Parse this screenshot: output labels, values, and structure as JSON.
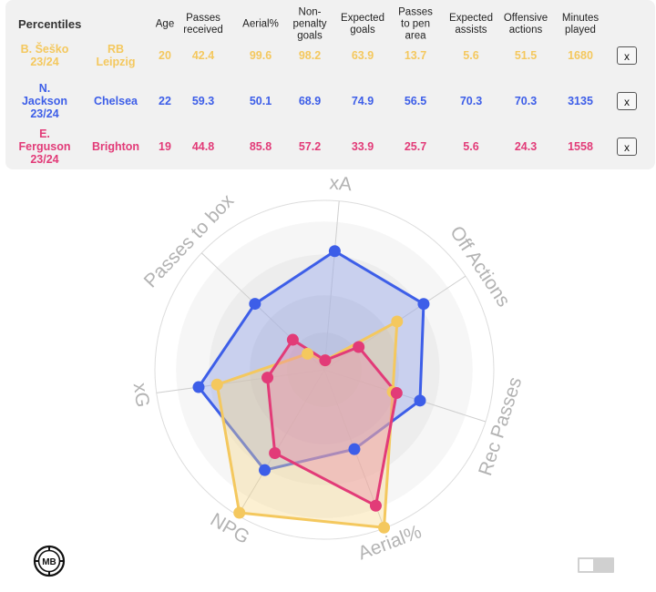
{
  "table": {
    "title": "Percentiles",
    "headers": [
      "Age",
      "Passes received",
      "Aerial%",
      "Non-penalty goals",
      "Expected goals",
      "Passes to pen area",
      "Expected assists",
      "Offensive actions",
      "Minutes played"
    ],
    "header_lines": [
      [
        "Age"
      ],
      [
        "Passes",
        "received"
      ],
      [
        "Aerial%"
      ],
      [
        "Non-",
        "penalty",
        "goals"
      ],
      [
        "Expected",
        "goals"
      ],
      [
        "Passes",
        "to pen",
        "area"
      ],
      [
        "Expected",
        "assists"
      ],
      [
        "Offensive",
        "actions"
      ],
      [
        "Minutes",
        "played"
      ]
    ],
    "remove_label": "x",
    "rows": [
      {
        "player_lines": [
          "B. Šeško",
          "23/24"
        ],
        "team_lines": [
          "RB",
          "Leipzig"
        ],
        "color": "#f4c85e",
        "values": [
          "20",
          "42.4",
          "99.6",
          "98.2",
          "63.9",
          "13.7",
          "5.6",
          "51.5",
          "1680"
        ]
      },
      {
        "player_lines": [
          "N.",
          "Jackson",
          "23/24"
        ],
        "team_lines": [
          "Chelsea"
        ],
        "color": "#3d5ee8",
        "values": [
          "22",
          "59.3",
          "50.1",
          "68.9",
          "74.9",
          "56.5",
          "70.3",
          "70.3",
          "3135"
        ]
      },
      {
        "player_lines": [
          "E.",
          "Ferguson",
          "23/24"
        ],
        "team_lines": [
          "Brighton"
        ],
        "color": "#e23b78",
        "values": [
          "19",
          "44.8",
          "85.8",
          "57.2",
          "33.9",
          "25.7",
          "5.6",
          "24.3",
          "1558"
        ]
      }
    ]
  },
  "radar": {
    "axes": [
      "xA",
      "Off Actions",
      "Rec Passes",
      "Aerial%",
      "NPG",
      "xG",
      "Passes to box"
    ],
    "axis_label_color": "#b3b3b3",
    "series": [
      {
        "player": "B. Šeško",
        "color": "#f4c85e",
        "fill": "#f7d88a",
        "values": [
          5.6,
          51.5,
          42.4,
          99.6,
          98.2,
          63.9,
          13.7
        ]
      },
      {
        "player": "N. Jackson",
        "color": "#3d5ee8",
        "fill": "#8ea0ef",
        "values": [
          70.3,
          70.3,
          59.3,
          50.1,
          68.9,
          74.9,
          56.5
        ]
      },
      {
        "player": "E. Ferguson",
        "color": "#e23b78",
        "fill": "#ec8aa8",
        "values": [
          5.6,
          24.3,
          44.8,
          85.8,
          57.2,
          33.9,
          25.7
        ]
      }
    ]
  },
  "footer": {
    "logo_text": "MB",
    "logo_icon": "mb-logo-icon",
    "toggle_state": "off"
  }
}
